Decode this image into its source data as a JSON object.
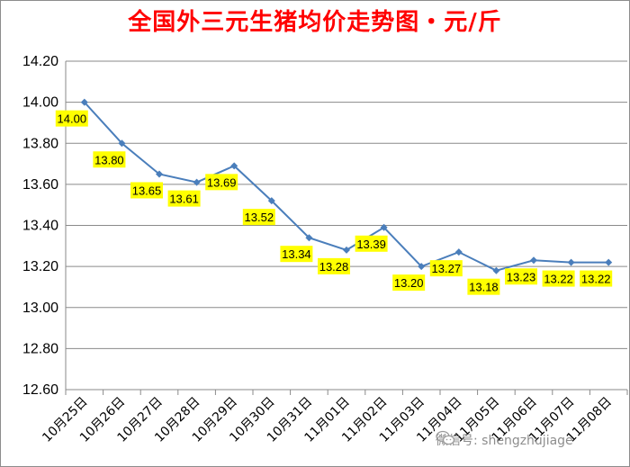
{
  "chart_data": {
    "type": "line",
    "title": "全国外三元生猪均价走势图・元/斤",
    "categories": [
      "10月25日",
      "10月26日",
      "10月27日",
      "10月28日",
      "10月29日",
      "10月30日",
      "10月31日",
      "11月01日",
      "11月02日",
      "11月03日",
      "11月04日",
      "11月05日",
      "11月06日",
      "11月07日",
      "11月08日"
    ],
    "series": [
      {
        "values": [
          14.0,
          13.8,
          13.65,
          13.61,
          13.69,
          13.52,
          13.34,
          13.28,
          13.39,
          13.2,
          13.27,
          13.18,
          13.23,
          13.22,
          13.22
        ]
      }
    ],
    "data_labels": [
      "14.00",
      "13.80",
      "13.65",
      "13.61",
      "13.69",
      "13.52",
      "13.34",
      "13.28",
      "13.39",
      "13.20",
      "13.27",
      "13.18",
      "13.23",
      "13.22",
      "13.22"
    ],
    "ylim": [
      12.6,
      14.2
    ],
    "yticks": [
      "12.60",
      "12.80",
      "13.00",
      "13.20",
      "13.40",
      "13.60",
      "13.80",
      "14.00",
      "14.20"
    ],
    "grid": true,
    "line_color": "#4a7ebb",
    "label_bg_color": "#ffff00"
  },
  "watermark": {
    "text": "微信号: shengzhujiage",
    "icon": "wechat-icon"
  }
}
